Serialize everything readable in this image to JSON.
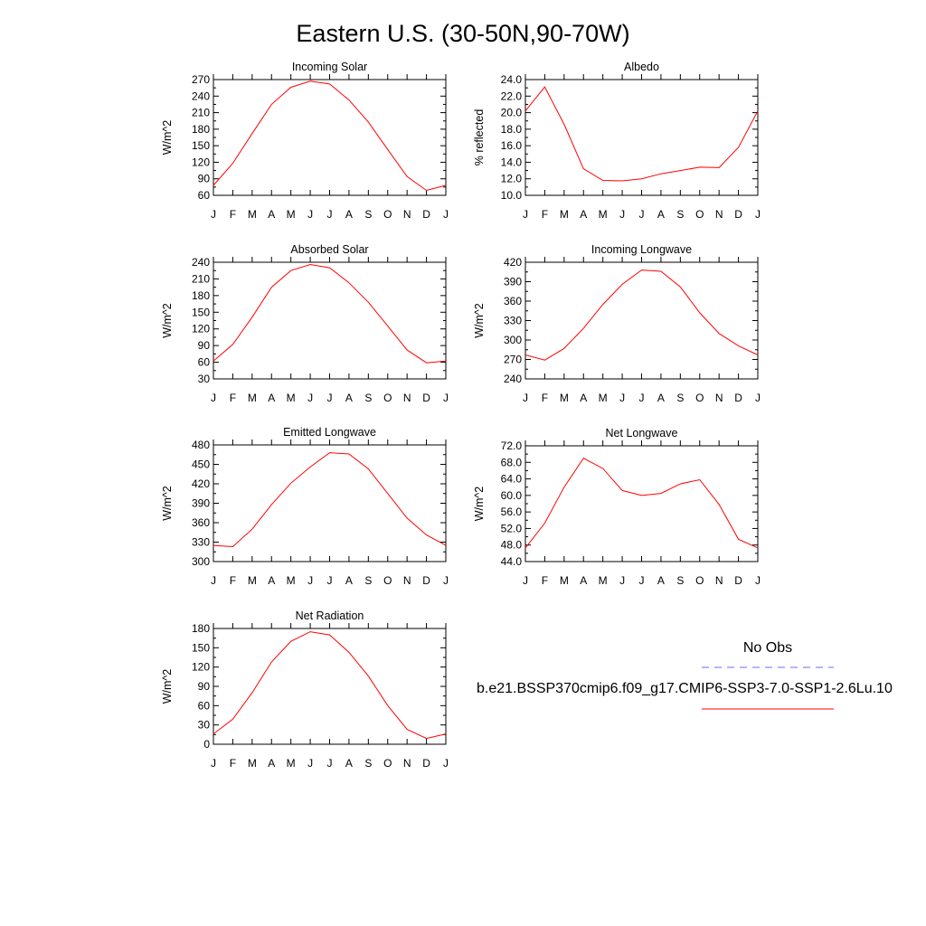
{
  "title": "Eastern U.S. (30-50N,90-70W)",
  "months": [
    "J",
    "F",
    "M",
    "A",
    "M",
    "J",
    "J",
    "A",
    "S",
    "O",
    "N",
    "D",
    "J"
  ],
  "colors": {
    "model": "#ff0000",
    "obs": "#6a6aff",
    "axis": "#000000"
  },
  "legend": {
    "obs_label": "No Obs",
    "model_label": "b.e21.BSSP370cmip6.f09_g17.CMIP6-SSP3-7.0-SSP1-2.6Lu.10"
  },
  "chart_data": [
    {
      "type": "line",
      "title": "Incoming Solar",
      "ylabel": "W/m^2",
      "ylim": [
        60,
        270
      ],
      "yticks": [
        "60",
        "90",
        "120",
        "150",
        "180",
        "210",
        "240",
        "270"
      ],
      "series": [
        {
          "values": [
            78,
            118,
            172,
            225,
            256,
            267,
            262,
            233,
            193,
            143,
            94,
            69,
            78
          ]
        }
      ]
    },
    {
      "type": "line",
      "title": "Albedo",
      "ylabel": "% reflected",
      "ylim": [
        10.0,
        24.0
      ],
      "yticks": [
        "10.0",
        "12.0",
        "14.0",
        "16.0",
        "18.0",
        "20.0",
        "22.0",
        "24.0"
      ],
      "series": [
        {
          "values": [
            20.2,
            23.1,
            18.6,
            13.2,
            11.8,
            11.75,
            12.0,
            12.6,
            13.0,
            13.4,
            13.35,
            15.8,
            20.2
          ]
        }
      ]
    },
    {
      "type": "line",
      "title": "Absorbed Solar",
      "ylabel": "W/m^2",
      "ylim": [
        30,
        240
      ],
      "yticks": [
        "30",
        "60",
        "90",
        "120",
        "150",
        "180",
        "210",
        "240"
      ],
      "series": [
        {
          "values": [
            62,
            92,
            141,
            195,
            225,
            236,
            230,
            203,
            168,
            125,
            82,
            59,
            62
          ]
        }
      ]
    },
    {
      "type": "line",
      "title": "Incoming Longwave",
      "ylabel": "W/m^2",
      "ylim": [
        240,
        420
      ],
      "yticks": [
        "240",
        "270",
        "300",
        "330",
        "360",
        "390",
        "420"
      ],
      "series": [
        {
          "values": [
            277,
            269,
            287,
            318,
            355,
            386,
            408,
            406,
            382,
            342,
            310,
            291,
            277
          ]
        }
      ]
    },
    {
      "type": "line",
      "title": "Emitted Longwave",
      "ylabel": "W/m^2",
      "ylim": [
        300,
        480
      ],
      "yticks": [
        "300",
        "330",
        "360",
        "390",
        "420",
        "450",
        "480"
      ],
      "series": [
        {
          "values": [
            325,
            323,
            350,
            388,
            421,
            446,
            468,
            466,
            443,
            405,
            367,
            341,
            325
          ]
        }
      ]
    },
    {
      "type": "line",
      "title": "Net Longwave",
      "ylabel": "W/m^2",
      "ylim": [
        44.0,
        72.0
      ],
      "yticks": [
        "44.0",
        "48.0",
        "52.0",
        "56.0",
        "60.0",
        "64.0",
        "68.0",
        "72.0"
      ],
      "series": [
        {
          "values": [
            47.3,
            53.3,
            62.0,
            69.0,
            66.5,
            61.2,
            60.0,
            60.5,
            62.8,
            63.8,
            57.8,
            49.4,
            47.3
          ]
        }
      ]
    },
    {
      "type": "line",
      "title": "Net Radiation",
      "ylabel": "W/m^2",
      "ylim": [
        0,
        180
      ],
      "yticks": [
        "0",
        "30",
        "60",
        "90",
        "120",
        "150",
        "180"
      ],
      "series": [
        {
          "values": [
            16,
            39,
            80,
            128,
            160,
            175,
            170,
            143,
            106,
            60,
            23,
            9,
            16
          ]
        }
      ]
    }
  ]
}
